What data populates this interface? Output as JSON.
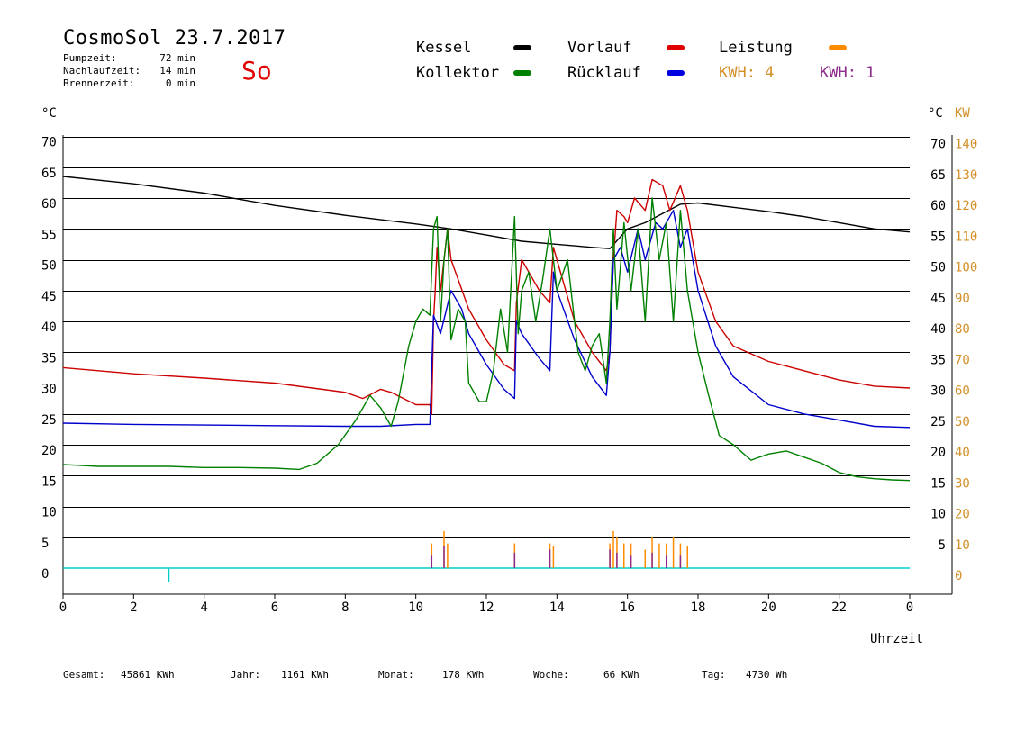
{
  "header": {
    "title": "CosmoSol 23.7.2017",
    "day": "So",
    "stats": [
      {
        "label": "Pumpzeit:",
        "value": "72 min"
      },
      {
        "label": "Nachlaufzeit:",
        "value": "14 min"
      },
      {
        "label": "Brennerzeit:",
        "value": "0 min"
      }
    ]
  },
  "legend": {
    "kessel": "Kessel",
    "kollektor": "Kollektor",
    "vorlauf": "Vorlauf",
    "ruecklauf": "Rücklauf",
    "leistung": "Leistung",
    "kwh_a": "KWH: 4",
    "kwh_b": "KWH: 1"
  },
  "colors": {
    "kessel": "#000000",
    "kollektor": "#008000",
    "vorlauf": "#cc0000",
    "ruecklauf": "#0000cc",
    "leistung": "#ff8c00",
    "kwh_a": "#d4902a",
    "kwh_b": "#8b2a8b",
    "baseline": "#00cccc"
  },
  "axes": {
    "left_unit": "°C",
    "right_unit": "°C",
    "right_unit2": "KW",
    "x_label": "Uhrzeit"
  },
  "footer": [
    {
      "label": "Gesamt:",
      "value": "45861 KWh"
    },
    {
      "label": "Jahr:",
      "value": "1161 KWh"
    },
    {
      "label": "Monat:",
      "value": "178 KWh"
    },
    {
      "label": "Woche:",
      "value": "66 KWh"
    },
    {
      "label": "Tag:",
      "value": "4730 Wh"
    }
  ],
  "chart_data": {
    "type": "line",
    "xlim": [
      0,
      24
    ],
    "ylim": [
      0,
      70
    ],
    "grid": true,
    "x_ticks": [
      "0",
      "2",
      "4",
      "6",
      "8",
      "10",
      "12",
      "14",
      "16",
      "18",
      "20",
      "22",
      "0"
    ],
    "y_ticks_left": [
      "0",
      "5",
      "10",
      "15",
      "20",
      "25",
      "30",
      "35",
      "40",
      "45",
      "50",
      "55",
      "60",
      "65",
      "70"
    ],
    "y_ticks_right_temp": [
      "",
      "5",
      "10",
      "15",
      "20",
      "25",
      "30",
      "35",
      "40",
      "45",
      "50",
      "55",
      "60",
      "65",
      "70"
    ],
    "y_ticks_right_kw": [
      "0",
      "10",
      "20",
      "30",
      "40",
      "50",
      "60",
      "70",
      "80",
      "90",
      "100",
      "110",
      "120",
      "130",
      "140"
    ],
    "series": [
      {
        "name": "Kessel",
        "color_key": "kessel",
        "points": [
          [
            0,
            63.5
          ],
          [
            2,
            62.3
          ],
          [
            4,
            60.8
          ],
          [
            6,
            58.8
          ],
          [
            8,
            57.2
          ],
          [
            10,
            55.8
          ],
          [
            11,
            55
          ],
          [
            12,
            54
          ],
          [
            13,
            53
          ],
          [
            14,
            52.5
          ],
          [
            15,
            52
          ],
          [
            15.5,
            51.8
          ],
          [
            16,
            55
          ],
          [
            16.5,
            56
          ],
          [
            17,
            57.5
          ],
          [
            17.5,
            59
          ],
          [
            18,
            59.2
          ],
          [
            19,
            58.5
          ],
          [
            20,
            57.8
          ],
          [
            21,
            57
          ],
          [
            22,
            56
          ],
          [
            23,
            55
          ],
          [
            24,
            54.5
          ]
        ]
      },
      {
        "name": "Vorlauf",
        "color_key": "vorlauf",
        "points": [
          [
            0,
            32.5
          ],
          [
            2,
            31.5
          ],
          [
            4,
            30.8
          ],
          [
            6,
            30
          ],
          [
            8,
            28.5
          ],
          [
            8.5,
            27.5
          ],
          [
            9,
            29
          ],
          [
            9.3,
            28.5
          ],
          [
            10,
            26.5
          ],
          [
            10.4,
            26.5
          ],
          [
            10.45,
            25
          ],
          [
            10.5,
            40
          ],
          [
            10.55,
            45
          ],
          [
            10.6,
            52
          ],
          [
            10.7,
            45
          ],
          [
            10.9,
            55
          ],
          [
            11,
            50
          ],
          [
            11.5,
            42
          ],
          [
            12,
            37
          ],
          [
            12.5,
            33
          ],
          [
            12.8,
            32
          ],
          [
            12.85,
            43
          ],
          [
            13,
            50
          ],
          [
            13.5,
            45
          ],
          [
            13.8,
            43
          ],
          [
            13.9,
            52
          ],
          [
            14,
            50
          ],
          [
            14.5,
            40
          ],
          [
            15,
            35
          ],
          [
            15.4,
            32
          ],
          [
            15.5,
            35
          ],
          [
            15.6,
            50
          ],
          [
            15.7,
            58
          ],
          [
            15.9,
            57
          ],
          [
            16,
            56
          ],
          [
            16.2,
            60
          ],
          [
            16.5,
            58
          ],
          [
            16.7,
            63
          ],
          [
            17,
            62
          ],
          [
            17.2,
            58
          ],
          [
            17.5,
            62
          ],
          [
            17.7,
            58
          ],
          [
            18,
            48
          ],
          [
            18.5,
            40
          ],
          [
            19,
            36
          ],
          [
            20,
            33.5
          ],
          [
            21,
            32
          ],
          [
            22,
            30.5
          ],
          [
            23,
            29.5
          ],
          [
            24,
            29.2
          ]
        ]
      },
      {
        "name": "Rücklauf",
        "color_key": "ruecklauf",
        "points": [
          [
            0,
            23.5
          ],
          [
            2,
            23.3
          ],
          [
            4,
            23.2
          ],
          [
            6,
            23.1
          ],
          [
            8,
            23.0
          ],
          [
            9,
            23.0
          ],
          [
            10,
            23.3
          ],
          [
            10.4,
            23.3
          ],
          [
            10.5,
            41
          ],
          [
            10.7,
            38
          ],
          [
            11,
            45
          ],
          [
            11.3,
            42
          ],
          [
            11.5,
            38
          ],
          [
            12,
            33
          ],
          [
            12.5,
            29
          ],
          [
            12.8,
            27.5
          ],
          [
            12.85,
            40
          ],
          [
            13,
            38
          ],
          [
            13.5,
            34
          ],
          [
            13.8,
            32
          ],
          [
            13.9,
            48
          ],
          [
            14,
            45
          ],
          [
            14.5,
            37
          ],
          [
            15,
            31
          ],
          [
            15.4,
            28
          ],
          [
            15.5,
            35
          ],
          [
            15.6,
            50
          ],
          [
            15.8,
            52
          ],
          [
            16,
            48
          ],
          [
            16.3,
            55
          ],
          [
            16.5,
            50
          ],
          [
            16.8,
            56
          ],
          [
            17,
            55
          ],
          [
            17.3,
            58
          ],
          [
            17.5,
            52
          ],
          [
            17.7,
            55
          ],
          [
            18,
            45
          ],
          [
            18.5,
            36
          ],
          [
            19,
            31
          ],
          [
            20,
            26.5
          ],
          [
            21,
            25
          ],
          [
            22,
            24
          ],
          [
            23,
            23
          ],
          [
            24,
            22.8
          ]
        ]
      },
      {
        "name": "Kollektor",
        "color_key": "kollektor",
        "points": [
          [
            0,
            16.8
          ],
          [
            1,
            16.5
          ],
          [
            2,
            16.5
          ],
          [
            3,
            16.5
          ],
          [
            4,
            16.3
          ],
          [
            5,
            16.3
          ],
          [
            6,
            16.2
          ],
          [
            6.7,
            16
          ],
          [
            7.2,
            17
          ],
          [
            7.8,
            20
          ],
          [
            8.3,
            24
          ],
          [
            8.7,
            28
          ],
          [
            9,
            26
          ],
          [
            9.3,
            23
          ],
          [
            9.5,
            27
          ],
          [
            9.8,
            36
          ],
          [
            10,
            40
          ],
          [
            10.2,
            42
          ],
          [
            10.4,
            41
          ],
          [
            10.5,
            55
          ],
          [
            10.6,
            57
          ],
          [
            10.7,
            40
          ],
          [
            10.8,
            50
          ],
          [
            10.9,
            55
          ],
          [
            11,
            37
          ],
          [
            11.2,
            42
          ],
          [
            11.4,
            40
          ],
          [
            11.5,
            30
          ],
          [
            11.8,
            27
          ],
          [
            12,
            27
          ],
          [
            12.2,
            32
          ],
          [
            12.4,
            42
          ],
          [
            12.6,
            35
          ],
          [
            12.8,
            57
          ],
          [
            12.9,
            38
          ],
          [
            13,
            45
          ],
          [
            13.2,
            48
          ],
          [
            13.4,
            40
          ],
          [
            13.6,
            47
          ],
          [
            13.8,
            55
          ],
          [
            14,
            45
          ],
          [
            14.3,
            50
          ],
          [
            14.6,
            35
          ],
          [
            14.8,
            32
          ],
          [
            15,
            36
          ],
          [
            15.2,
            38
          ],
          [
            15.4,
            30
          ],
          [
            15.5,
            40
          ],
          [
            15.6,
            55
          ],
          [
            15.7,
            42
          ],
          [
            15.9,
            56
          ],
          [
            16.1,
            45
          ],
          [
            16.3,
            55
          ],
          [
            16.5,
            40
          ],
          [
            16.7,
            60
          ],
          [
            16.9,
            50
          ],
          [
            17.1,
            56
          ],
          [
            17.3,
            40
          ],
          [
            17.5,
            58
          ],
          [
            17.7,
            45
          ],
          [
            18,
            35
          ],
          [
            18.3,
            28
          ],
          [
            18.6,
            21.5
          ],
          [
            19,
            20
          ],
          [
            19.5,
            17.5
          ],
          [
            20,
            18.5
          ],
          [
            20.5,
            19
          ],
          [
            21,
            18
          ],
          [
            21.5,
            17
          ],
          [
            22,
            15.5
          ],
          [
            22.5,
            14.8
          ],
          [
            23,
            14.5
          ],
          [
            23.5,
            14.3
          ],
          [
            24,
            14.2
          ]
        ]
      }
    ],
    "bottom_bars": [
      {
        "name": "Leistung",
        "color_key": "leistung",
        "x": [
          10.45,
          10.8,
          10.9,
          12.8,
          13.8,
          13.9,
          15.5,
          15.6,
          15.7,
          15.9,
          16.1,
          16.5,
          16.7,
          16.9,
          17.1,
          17.3,
          17.5,
          17.7
        ],
        "y": [
          4,
          6,
          4,
          4,
          4,
          3.5,
          4,
          6,
          5,
          4,
          4,
          3,
          5,
          4,
          4,
          5,
          4,
          3.5
        ]
      },
      {
        "name": "KWH",
        "color_key": "kwh_b",
        "x": [
          10.45,
          10.8,
          12.8,
          13.8,
          15.5,
          15.7,
          16.1,
          16.7,
          17.1,
          17.5
        ],
        "y": [
          2,
          3.5,
          2.5,
          3,
          3,
          2.5,
          2,
          2.5,
          2,
          2
        ]
      }
    ],
    "baseline": {
      "x": [
        0,
        24
      ],
      "y": 0,
      "spike_x": 3,
      "spike_y": -2.3
    }
  }
}
